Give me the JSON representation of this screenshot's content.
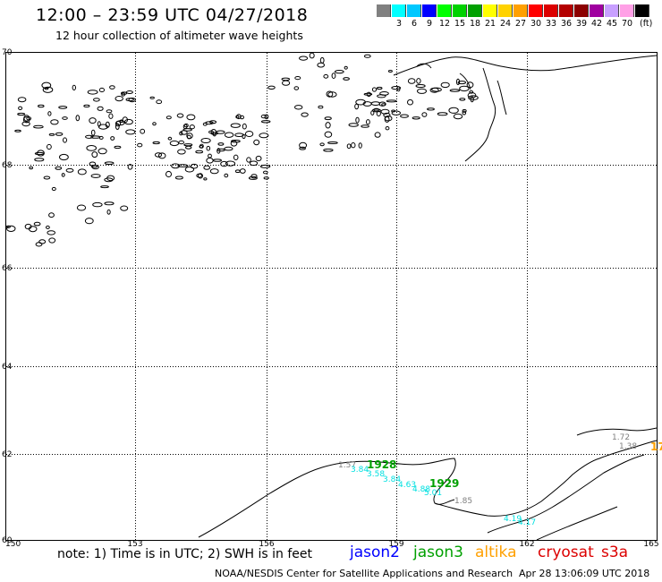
{
  "header": {
    "title": "12:00 – 23:59 UTC 04/27/2018",
    "subtitle": "12 hour collection of altimeter wave heights"
  },
  "color_scale": {
    "unit": "(ft)",
    "entries": [
      {
        "label": "",
        "color": "#808080"
      },
      {
        "label": "3",
        "color": "#00ffff"
      },
      {
        "label": "6",
        "color": "#00c8ff"
      },
      {
        "label": "9",
        "color": "#0000ff"
      },
      {
        "label": "12",
        "color": "#00ff00"
      },
      {
        "label": "15",
        "color": "#00d200"
      },
      {
        "label": "18",
        "color": "#00a000"
      },
      {
        "label": "21",
        "color": "#ffff00"
      },
      {
        "label": "24",
        "color": "#ffd200"
      },
      {
        "label": "27",
        "color": "#ffa000"
      },
      {
        "label": "30",
        "color": "#ff0000"
      },
      {
        "label": "33",
        "color": "#dc0000"
      },
      {
        "label": "36",
        "color": "#b40000"
      },
      {
        "label": "39",
        "color": "#8c0000"
      },
      {
        "label": "42",
        "color": "#a000a0"
      },
      {
        "label": "45",
        "color": "#c8a0ff"
      },
      {
        "label": "70",
        "color": "#ffa0e6"
      },
      {
        "label": "",
        "color": "#000000"
      }
    ]
  },
  "map": {
    "lat_labels": [
      "70",
      "68",
      "66",
      "64",
      "62",
      "60"
    ],
    "lon_labels": [
      "150",
      "153",
      "156",
      "159",
      "162",
      "165"
    ],
    "observations": [
      {
        "text": "1.57",
        "color": "#808080"
      },
      {
        "text": "1928",
        "color": "#00a000"
      },
      {
        "text": "3.84",
        "color": "#00e0e0"
      },
      {
        "text": "3.58",
        "color": "#00e0e0"
      },
      {
        "text": "3.84",
        "color": "#00e0e0"
      },
      {
        "text": "4.63",
        "color": "#00e0e0"
      },
      {
        "text": "4.88",
        "color": "#00e0e0"
      },
      {
        "text": "5.01",
        "color": "#00e0e0"
      },
      {
        "text": "1929",
        "color": "#00a000"
      },
      {
        "text": "1.85",
        "color": "#808080"
      },
      {
        "text": "4.19",
        "color": "#00e0e0"
      },
      {
        "text": "4.17",
        "color": "#00e0e0"
      },
      {
        "text": "1.72",
        "color": "#808080"
      },
      {
        "text": "1.38",
        "color": "#808080"
      },
      {
        "text": "17",
        "color": "#ffa000"
      }
    ]
  },
  "footer": {
    "note": "note: 1) Time is in UTC; 2) SWH is in feet",
    "satellites": [
      {
        "name": "jason2",
        "color": "#0000ff"
      },
      {
        "name": "jason3",
        "color": "#00a000"
      },
      {
        "name": "altika",
        "color": "#ffa000"
      },
      {
        "name": "cryosat",
        "color": "#dc0000"
      },
      {
        "name": "s3a",
        "color": "#dc0000"
      }
    ],
    "credit": "NOAA/NESDIS Center for Satellite Applications and Research",
    "timestamp": "Apr 28 13:06:09 UTC 2018"
  }
}
